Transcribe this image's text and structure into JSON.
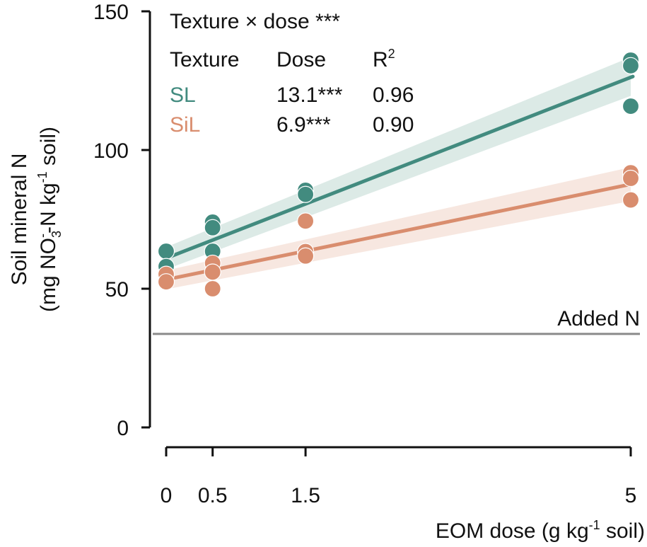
{
  "chart_data": {
    "type": "scatter",
    "title": "",
    "xlabel": "EOM dose (g kg-1 soil)",
    "xlabel_parts": {
      "main": "EOM dose (g kg",
      "sup": "-1",
      "tail": " soil)"
    },
    "ylabel_line1": "Soil mineral N",
    "ylabel_line2_parts": {
      "a": "(mg NO",
      "sub": "3",
      "sup": "-",
      "b": "-N kg",
      "sup2": "-1",
      "c": " soil)"
    },
    "xlim": [
      0,
      5
    ],
    "ylim": [
      0,
      150
    ],
    "x_ticks": [
      0,
      0.5,
      1.5,
      5
    ],
    "x_tick_labels": [
      "0",
      "0.5",
      "1.5",
      "5"
    ],
    "y_ticks": [
      0,
      50,
      100,
      150
    ],
    "y_tick_labels": [
      "0",
      "50",
      "100",
      "150"
    ],
    "grid": false,
    "reference_line": {
      "label": "Added N",
      "y": 33.7,
      "color": "#8a8a8a"
    },
    "annotation": {
      "interaction": "Texture × dose ***",
      "header": {
        "texture": "Texture",
        "dose": "Dose",
        "r2_main": "R",
        "r2_sup": "2"
      },
      "rows": [
        {
          "texture": "SL",
          "dose": "13.1***",
          "r2": "0.96"
        },
        {
          "texture": "SiL",
          "dose": "6.9***",
          "r2": "0.90"
        }
      ]
    },
    "series": [
      {
        "name": "SL",
        "color": "#428b7f",
        "band_color": "#d6e6e2",
        "points": [
          {
            "x": 0,
            "y": 63.5
          },
          {
            "x": 0,
            "y": 58.0
          },
          {
            "x": 0.5,
            "y": 74.0
          },
          {
            "x": 0.5,
            "y": 72.0
          },
          {
            "x": 0.5,
            "y": 63.5
          },
          {
            "x": 1.5,
            "y": 85.5
          },
          {
            "x": 1.5,
            "y": 84.0
          },
          {
            "x": 5,
            "y": 132.4
          },
          {
            "x": 5,
            "y": 130.4
          },
          {
            "x": 5,
            "y": 115.8
          }
        ],
        "fit": {
          "intercept": 61.0,
          "slope": 13.1,
          "r2": 0.96
        },
        "ci": {
          "x0": [
            57.0,
            65.0
          ],
          "x5": [
            119.5,
            133.5
          ]
        }
      },
      {
        "name": "SiL",
        "color": "#d98d6e",
        "band_color": "#f6e3db",
        "points": [
          {
            "x": 0,
            "y": 55.2
          },
          {
            "x": 0,
            "y": 52.5
          },
          {
            "x": 0.5,
            "y": 59.2
          },
          {
            "x": 0.5,
            "y": 56.0
          },
          {
            "x": 0.5,
            "y": 50.0
          },
          {
            "x": 1.5,
            "y": 74.4
          },
          {
            "x": 1.5,
            "y": 63.4
          },
          {
            "x": 1.5,
            "y": 61.8
          },
          {
            "x": 5,
            "y": 91.8
          },
          {
            "x": 5,
            "y": 89.8
          },
          {
            "x": 5,
            "y": 82.0
          }
        ],
        "fit": {
          "intercept": 53.3,
          "slope": 6.9,
          "r2": 0.9
        },
        "ci": {
          "x0": [
            49.8,
            56.6
          ],
          "x5": [
            81.6,
            93.8
          ]
        }
      }
    ]
  }
}
